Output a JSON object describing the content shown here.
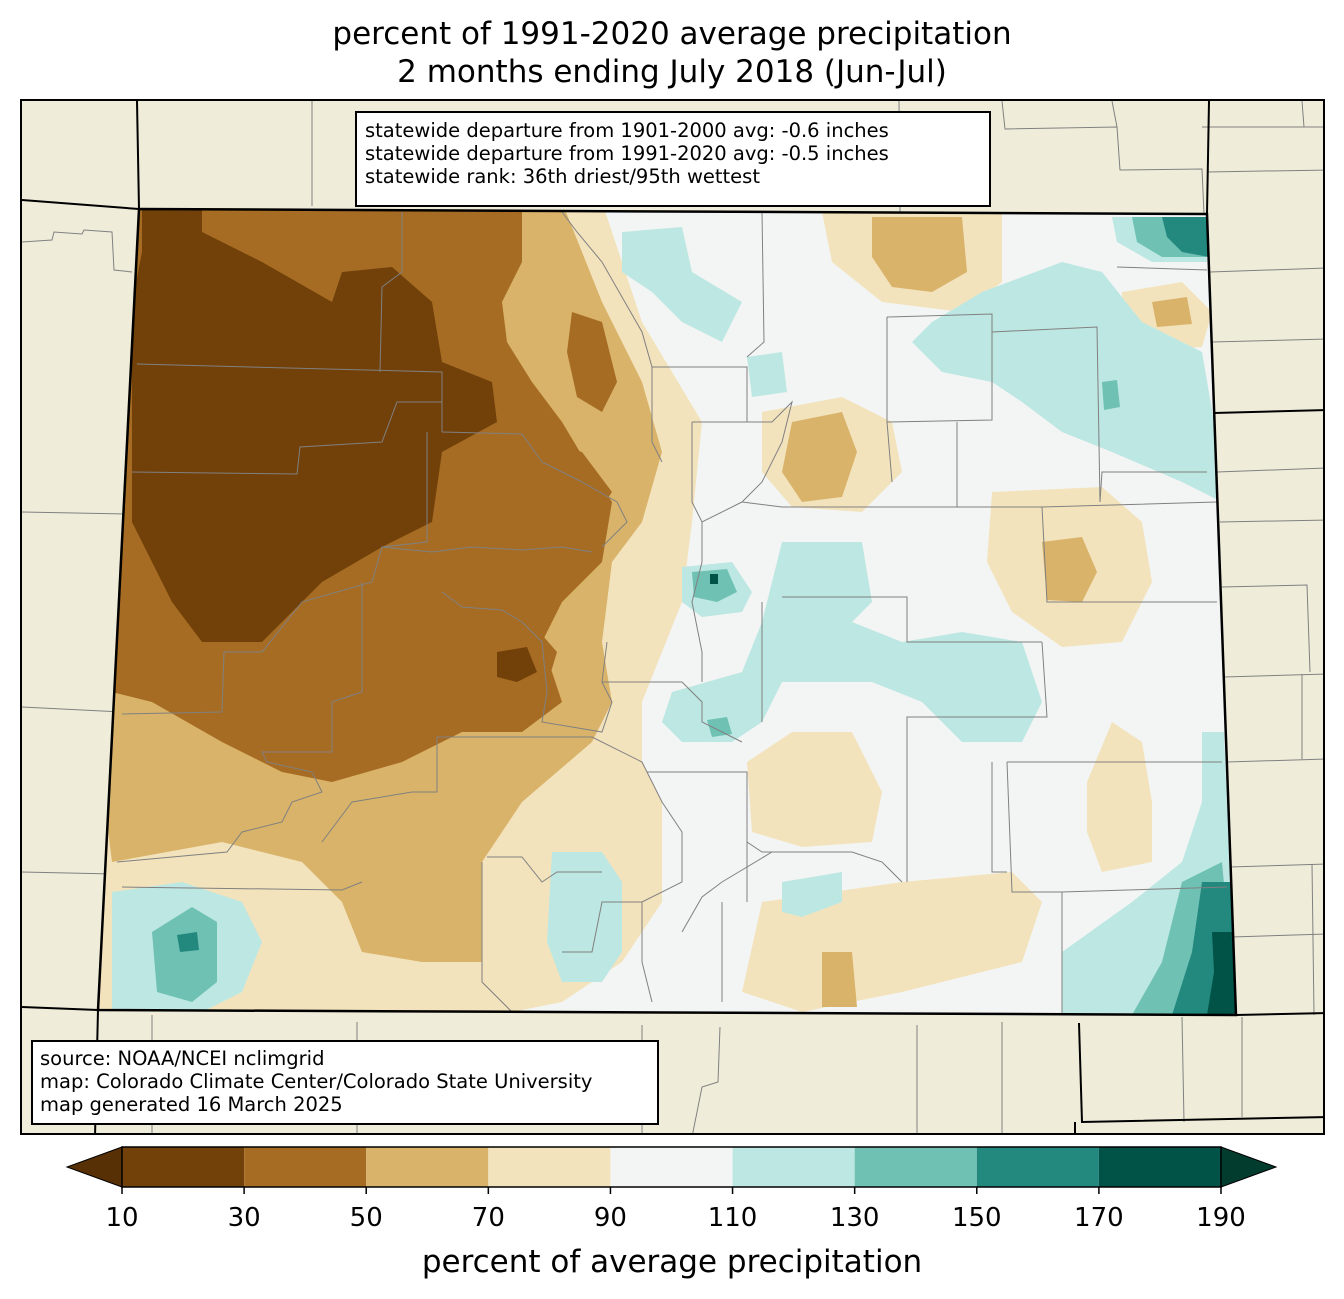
{
  "title": {
    "line1": "percent of 1991-2020 average precipitation",
    "line2": "2 months ending July 2018 (Jun-Jul)"
  },
  "stats_box": {
    "line1": "statewide departure from 1901-2000 avg: -0.6 inches",
    "line2": "statewide departure from 1991-2020 avg: -0.5 inches",
    "line3": "statewide rank: 36th driest/95th wettest"
  },
  "source_box": {
    "line1": "source: NOAA/NCEI nclimgrid",
    "line2": "map: Colorado Climate Center/Colorado State University",
    "line3": "map generated 16 March 2025"
  },
  "colorbar": {
    "label": "percent of average precipitation",
    "ticks": [
      "10",
      "30",
      "50",
      "70",
      "90",
      "110",
      "130",
      "150",
      "170",
      "190"
    ],
    "bins": [
      {
        "range": [
          10,
          30
        ],
        "color": "#724109"
      },
      {
        "range": [
          30,
          50
        ],
        "color": "#a76c23"
      },
      {
        "range": [
          50,
          70
        ],
        "color": "#d9b36a"
      },
      {
        "range": [
          70,
          90
        ],
        "color": "#f3e3bd"
      },
      {
        "range": [
          90,
          110
        ],
        "color": "#f3f5f4"
      },
      {
        "range": [
          110,
          130
        ],
        "color": "#bde7e2"
      },
      {
        "range": [
          130,
          150
        ],
        "color": "#6fc1b3"
      },
      {
        "range": [
          150,
          170
        ],
        "color": "#23897f"
      },
      {
        "range": [
          170,
          190
        ],
        "color": "#005346"
      }
    ],
    "under_color": "#573006",
    "over_color": "#023c2f"
  },
  "map_colors": {
    "land_background": "#efedda",
    "state_border": "#000000",
    "county_border": "#808080"
  }
}
